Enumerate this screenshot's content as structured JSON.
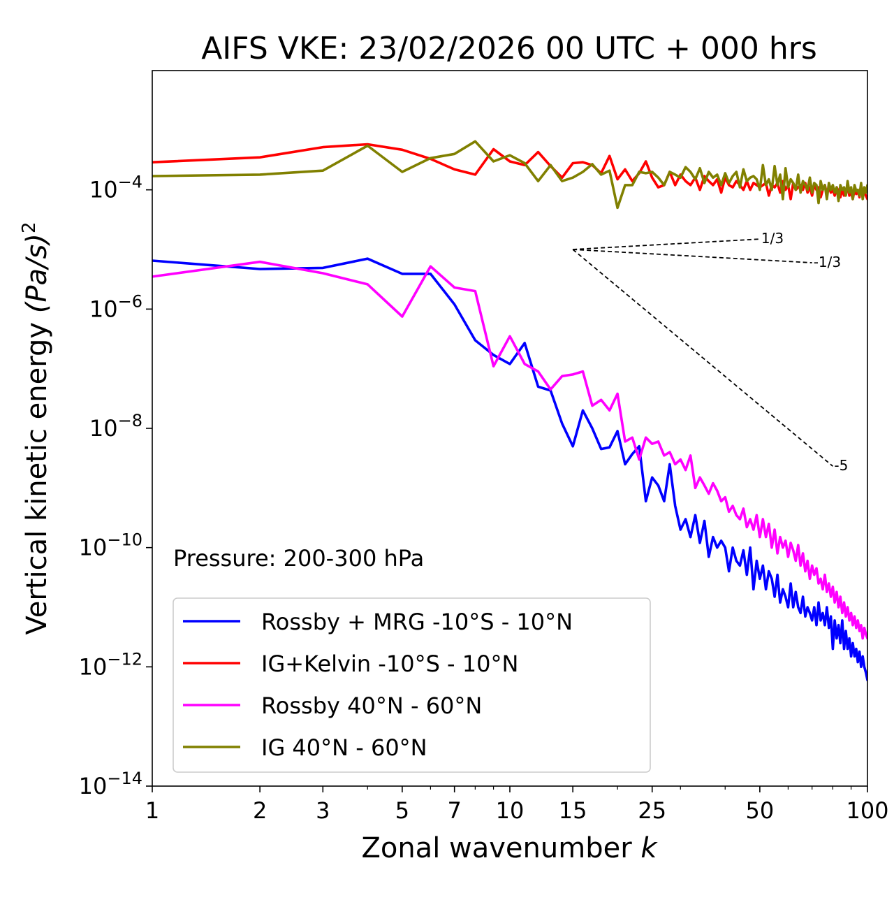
{
  "chart_data": {
    "type": "line",
    "title": "AIFS VKE: 23/02/2026 00 UTC + 000 hrs",
    "xlabel": "Zonal wavenumber",
    "xlabel_var": "k",
    "ylabel": "Vertical kinetic energy",
    "ylabel_units": "(Pa/s)",
    "ylabel_power": "2",
    "xscale": "log",
    "yscale": "log",
    "xlim": [
      1,
      100
    ],
    "ylim": [
      1e-14,
      0.01
    ],
    "x_ticks": [
      1,
      2,
      3,
      5,
      7,
      10,
      15,
      25,
      50,
      100
    ],
    "x_tick_labels": [
      "1",
      "2",
      "3",
      "5",
      "7",
      "10",
      "15",
      "25",
      "50",
      "100"
    ],
    "y_ticks": [
      1e-14,
      1e-12,
      1e-10,
      1e-08,
      1e-06,
      0.0001
    ],
    "y_tick_mantissa": "10",
    "y_tick_exponents": [
      "−14",
      "−12",
      "−10",
      "−8",
      "−6",
      "−4"
    ],
    "annotation": "Pressure: 200-300 hPa",
    "legend_location": "lower-left",
    "slope_reference": {
      "origin": [
        15,
        1e-05
      ],
      "lines": [
        {
          "label": "1/3",
          "slope": 0.3333,
          "end_x": 50
        },
        {
          "label": "-1/3",
          "slope": -0.3333,
          "end_x": 70
        },
        {
          "label": "-5",
          "slope": -5,
          "end_x": 80
        }
      ]
    },
    "series": [
      {
        "name": "Rossby + MRG -10°S - 10°N",
        "color": "#0000ff",
        "x": [
          1,
          2,
          3,
          4,
          5,
          6,
          7,
          8,
          9,
          10,
          11,
          12,
          13,
          14,
          15,
          16,
          17,
          18,
          19,
          20,
          21,
          22,
          23,
          24,
          25,
          26,
          27,
          28,
          29,
          30,
          31,
          32,
          33,
          34,
          35,
          36,
          37,
          38,
          39,
          40,
          41,
          42,
          43,
          44,
          45,
          46,
          47,
          48,
          49,
          50,
          51,
          52,
          53,
          54,
          55,
          56,
          57,
          58,
          59,
          60,
          61,
          62,
          63,
          64,
          65,
          66,
          67,
          68,
          69,
          70,
          71,
          72,
          73,
          74,
          75,
          76,
          77,
          78,
          79,
          80,
          81,
          82,
          83,
          84,
          85,
          86,
          87,
          88,
          89,
          90,
          91,
          92,
          93,
          94,
          95,
          96,
          97,
          98,
          99,
          100
        ],
        "values": [
          6.5e-06,
          4.7e-06,
          4.9e-06,
          7e-06,
          3.9e-06,
          3.9e-06,
          1.2e-06,
          3e-07,
          1.7e-07,
          1.2e-07,
          2.7e-07,
          5e-08,
          4.3e-08,
          1.2e-08,
          5e-09,
          2e-08,
          1e-08,
          4.5e-09,
          4.8e-09,
          9e-09,
          2.5e-09,
          3.7e-09,
          5e-09,
          6e-10,
          1.5e-09,
          1.1e-09,
          6e-10,
          2.5e-09,
          5e-10,
          2e-10,
          3e-10,
          1.5e-10,
          3.5e-10,
          1.2e-10,
          2.8e-10,
          7e-11,
          1.5e-10,
          1e-10,
          1.3e-10,
          1e-10,
          4e-11,
          1e-10,
          6e-11,
          5e-11,
          9e-11,
          3.5e-11,
          1e-10,
          2e-11,
          6e-11,
          3e-11,
          5e-11,
          2e-11,
          4e-11,
          3e-11,
          1.5e-11,
          3.5e-11,
          1.2e-11,
          2e-11,
          1.5e-11,
          1e-11,
          2.5e-11,
          1e-11,
          1.8e-11,
          1e-11,
          8e-12,
          1.5e-11,
          7e-12,
          1e-11,
          8e-12,
          6e-12,
          1e-11,
          5e-12,
          1.2e-11,
          6e-12,
          8e-12,
          5e-12,
          1e-11,
          4.5e-12,
          7e-12,
          2e-12,
          6e-12,
          3e-12,
          5e-12,
          2.5e-12,
          6e-12,
          2e-12,
          4e-12,
          2e-12,
          3e-12,
          1.5e-12,
          2.5e-12,
          1.5e-12,
          2e-12,
          1.2e-12,
          1.8e-12,
          1e-12,
          1.5e-12,
          1e-12,
          8e-13,
          6e-13
        ]
      },
      {
        "name": "IG+Kelvin -10°S - 10°N",
        "color": "#ff0000",
        "x": [
          1,
          2,
          3,
          4,
          5,
          6,
          7,
          8,
          9,
          10,
          11,
          12,
          13,
          14,
          15,
          16,
          17,
          18,
          19,
          20,
          21,
          22,
          23,
          24,
          25,
          26,
          27,
          28,
          29,
          30,
          31,
          32,
          33,
          34,
          35,
          36,
          37,
          38,
          39,
          40,
          41,
          42,
          43,
          44,
          45,
          46,
          47,
          48,
          49,
          50,
          51,
          52,
          53,
          54,
          55,
          56,
          57,
          58,
          59,
          60,
          61,
          62,
          63,
          64,
          65,
          66,
          67,
          68,
          69,
          70,
          71,
          72,
          73,
          74,
          75,
          76,
          77,
          78,
          79,
          80,
          81,
          82,
          83,
          84,
          85,
          86,
          87,
          88,
          89,
          90,
          91,
          92,
          93,
          94,
          95,
          96,
          97,
          98,
          99,
          100
        ],
        "values": [
          0.00029,
          0.00035,
          0.00052,
          0.00058,
          0.00047,
          0.00033,
          0.00022,
          0.00018,
          0.00048,
          0.0003,
          0.00026,
          0.00043,
          0.00025,
          0.00016,
          0.00028,
          0.00029,
          0.00026,
          0.00019,
          0.00037,
          0.00015,
          0.00022,
          0.00014,
          0.00019,
          0.0003,
          0.00016,
          0.00011,
          0.00012,
          0.0002,
          0.00012,
          0.00018,
          0.00014,
          0.00012,
          0.00016,
          0.0001,
          0.00017,
          0.00014,
          0.00012,
          0.00015,
          9e-05,
          0.00016,
          0.00012,
          0.00011,
          0.00014,
          0.00012,
          0.0001,
          0.00014,
          0.0001,
          0.00013,
          0.00012,
          0.00011,
          0.00012,
          0.00013,
          8e-05,
          0.00012,
          0.00011,
          0.00013,
          9e-05,
          0.00014,
          0.0001,
          0.00012,
          7e-05,
          0.00013,
          0.0001,
          0.00011,
          0.00012,
          0.0001,
          0.00013,
          9e-05,
          0.00011,
          8e-05,
          0.00012,
          0.0001,
          0.00011,
          7.5e-05,
          0.0001,
          0.00012,
          8.5e-05,
          0.00011,
          9e-05,
          0.0001,
          8e-05,
          0.00011,
          9.5e-05,
          7.5e-05,
          0.0001,
          8e-05,
          9e-05,
          0.00011,
          8e-05,
          9e-05,
          7e-05,
          0.0001,
          8.5e-05,
          9.5e-05,
          7.5e-05,
          0.00012,
          8e-05,
          9e-05,
          8e-05,
          7e-05
        ]
      },
      {
        "name": "Rossby 40°N - 60°N",
        "color": "#ff00ff",
        "x": [
          1,
          2,
          3,
          4,
          5,
          6,
          7,
          8,
          9,
          10,
          11,
          12,
          13,
          14,
          15,
          16,
          17,
          18,
          19,
          20,
          21,
          22,
          23,
          24,
          25,
          26,
          27,
          28,
          29,
          30,
          31,
          32,
          33,
          34,
          35,
          36,
          37,
          38,
          39,
          40,
          41,
          42,
          43,
          44,
          45,
          46,
          47,
          48,
          49,
          50,
          51,
          52,
          53,
          54,
          55,
          56,
          57,
          58,
          59,
          60,
          61,
          62,
          63,
          64,
          65,
          66,
          67,
          68,
          69,
          70,
          71,
          72,
          73,
          74,
          75,
          76,
          77,
          78,
          79,
          80,
          81,
          82,
          83,
          84,
          85,
          86,
          87,
          88,
          89,
          90,
          91,
          92,
          93,
          94,
          95,
          96,
          97,
          98,
          99,
          100
        ],
        "values": [
          3.5e-06,
          6.2e-06,
          4e-06,
          2.6e-06,
          7.5e-07,
          5.2e-06,
          2.3e-06,
          2e-06,
          1.1e-07,
          3.5e-07,
          1.2e-07,
          9e-08,
          4.5e-08,
          7.5e-08,
          8e-08,
          9e-08,
          2.4e-08,
          3e-08,
          2e-08,
          3.8e-08,
          6e-09,
          7e-09,
          3e-09,
          7e-09,
          5.5e-09,
          6e-09,
          3.5e-09,
          4e-09,
          2.5e-09,
          3e-09,
          2e-09,
          3.5e-09,
          1e-09,
          1.5e-09,
          1.1e-09,
          8e-10,
          1.2e-09,
          9e-10,
          6e-10,
          7e-10,
          4e-10,
          5e-10,
          3.5e-10,
          3e-10,
          4.5e-10,
          2.2e-10,
          3e-10,
          2e-10,
          3.5e-10,
          1.5e-10,
          3e-10,
          1.5e-10,
          2.5e-10,
          1e-10,
          2e-10,
          8e-11,
          1.5e-10,
          1e-10,
          1.3e-10,
          7e-11,
          1.2e-10,
          9e-11,
          6e-11,
          1.1e-10,
          5e-11,
          8e-11,
          4e-11,
          6e-11,
          3e-11,
          5e-11,
          3.5e-11,
          4.5e-11,
          2.5e-11,
          3e-11,
          2e-11,
          3.5e-11,
          1.8e-11,
          2.5e-11,
          1.5e-11,
          2.2e-11,
          1.2e-11,
          1.8e-11,
          1e-11,
          1.5e-11,
          8e-12,
          1.2e-11,
          7e-12,
          1e-11,
          6e-12,
          8e-12,
          5e-12,
          7e-12,
          4.5e-12,
          6e-12,
          4e-12,
          5e-12,
          3e-12,
          4.5e-12,
          3.5e-12,
          3e-12
        ]
      },
      {
        "name": "IG 40°N - 60°N",
        "color": "#808000",
        "x": [
          1,
          2,
          3,
          4,
          5,
          6,
          7,
          8,
          9,
          10,
          11,
          12,
          13,
          14,
          15,
          16,
          17,
          18,
          19,
          20,
          21,
          22,
          23,
          24,
          25,
          26,
          27,
          28,
          29,
          30,
          31,
          32,
          33,
          34,
          35,
          36,
          37,
          38,
          39,
          40,
          41,
          42,
          43,
          44,
          45,
          46,
          47,
          48,
          49,
          50,
          51,
          52,
          53,
          54,
          55,
          56,
          57,
          58,
          59,
          60,
          61,
          62,
          63,
          64,
          65,
          66,
          67,
          68,
          69,
          70,
          71,
          72,
          73,
          74,
          75,
          76,
          77,
          78,
          79,
          80,
          81,
          82,
          83,
          84,
          85,
          86,
          87,
          88,
          89,
          90,
          91,
          92,
          93,
          94,
          95,
          96,
          97,
          98,
          99,
          100
        ],
        "values": [
          0.00017,
          0.00018,
          0.00021,
          0.00055,
          0.0002,
          0.00034,
          0.0004,
          0.00065,
          0.0003,
          0.00038,
          0.00028,
          0.00014,
          0.00026,
          0.00014,
          0.00016,
          0.0002,
          0.00027,
          0.00018,
          0.00021,
          5e-05,
          0.00012,
          0.00012,
          0.0002,
          0.00019,
          0.0002,
          0.00016,
          0.00012,
          0.0002,
          0.00018,
          0.00016,
          0.00024,
          0.0002,
          0.00015,
          0.00023,
          0.00013,
          0.0002,
          0.00016,
          0.00018,
          0.00012,
          0.00019,
          0.00013,
          0.00017,
          0.0002,
          0.00011,
          0.00022,
          0.00014,
          0.00016,
          0.00017,
          0.00015,
          0.0001,
          0.00026,
          0.00012,
          0.00015,
          0.0001,
          0.00025,
          0.00012,
          0.00018,
          7e-05,
          0.00023,
          0.00011,
          0.00015,
          0.00013,
          0.0001,
          0.00018,
          9e-05,
          0.00014,
          0.00012,
          0.0001,
          0.00016,
          9e-05,
          0.00013,
          0.00012,
          6e-05,
          0.00014,
          0.0001,
          0.00012,
          7e-05,
          0.00013,
          0.0001,
          0.00012,
          9e-05,
          0.00011,
          6.5e-05,
          0.00012,
          0.0001,
          0.00011,
          8e-05,
          0.00014,
          9e-05,
          0.00011,
          7e-05,
          0.00012,
          9.5e-05,
          0.0001,
          8e-05,
          0.00013,
          7e-05,
          0.00011,
          9e-05,
          0.00012
        ]
      }
    ]
  }
}
